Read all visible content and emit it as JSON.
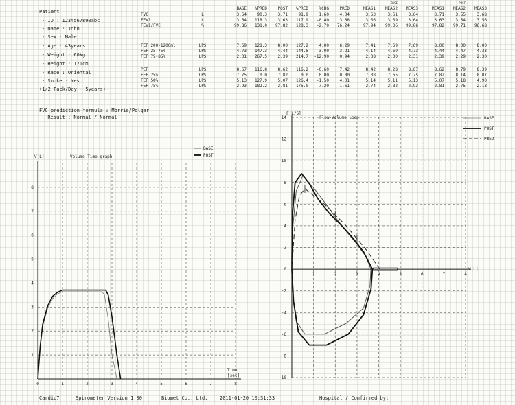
{
  "patient": {
    "heading": "Patient",
    "fields": [
      "- ID : 1234567890abc",
      "- Name : John",
      "- Sex : Male",
      "- Age : 43years",
      "- Weight : 60kg",
      "- Height : 171cm",
      "- Race : Oriental",
      "- Smoke : Yes",
      "(1/2 Pack/Day - 5years)"
    ]
  },
  "table": {
    "columns": [
      "BASE",
      "%PRED",
      "POST",
      "%PRED",
      "%CHG",
      "PRED",
      "MEAS1",
      "MEAS2",
      "MEAS3",
      "MEAS1",
      "MEAS2",
      "MEAS3"
    ],
    "tiny_labels": [
      "BASE",
      "POST"
    ],
    "rows": [
      {
        "name": "FVC",
        "unit": "L",
        "values": [
          "3.64",
          "90.3",
          "3.71",
          "91.9",
          "1.60",
          "4.04",
          "3.63",
          "3.61",
          "3.64",
          "3.71",
          "3.55",
          "3.68"
        ]
      },
      {
        "name": "FEV1",
        "unit": "L",
        "values": [
          "3.64",
          "118.3",
          "3.63",
          "117.9",
          "-0.40",
          "3.08",
          "3.56",
          "3.59",
          "3.64",
          "3.63",
          "3.54",
          "3.56"
        ]
      },
      {
        "name": "FEV1/FVC",
        "unit": "%",
        "values": [
          "99.86",
          "131.0",
          "97.82",
          "128.3",
          "-2.70",
          "76.24",
          "97.94",
          "99.36",
          "99.86",
          "97.82",
          "99.71",
          "96.68"
        ]
      },
      {
        "name": "FEF 200-1200ml",
        "unit": "LPS",
        "values": [
          "7.69",
          "121.3",
          "8.00",
          "127.2",
          "4.00",
          "6.29",
          "7.41",
          "7.69",
          "7.69",
          "8.00",
          "8.00",
          "8.00"
        ]
      },
      {
        "name": "FEF 25-75%",
        "unit": "LPS",
        "values": [
          "4.73",
          "147.3",
          "4.44",
          "144.5",
          "-3.00",
          "3.21",
          "4.14",
          "4.69",
          "4.73",
          "4.44",
          "4.47",
          "4.33"
        ]
      },
      {
        "name": "FEF 75-85%",
        "unit": "LPS",
        "values": [
          "2.31",
          "267.5",
          "2.39",
          "214.7",
          "-12.90",
          "0.94",
          "2.38",
          "2.30",
          "2.31",
          "2.39",
          "2.29",
          "2.30"
        ]
      },
      {
        "name": "PEF",
        "unit": "LPS",
        "values": [
          "8.67",
          "116.8",
          "8.62",
          "116.2",
          "-0.60",
          "7.42",
          "8.42",
          "8.28",
          "8.67",
          "8.62",
          "8.79",
          "8.39"
        ]
      },
      {
        "name": "FEF 25%",
        "unit": "LPS",
        "values": [
          "7.75",
          "0.0",
          "7.82",
          "0.0",
          "0.00",
          "0.00",
          "7.38",
          "7.65",
          "7.75",
          "7.82",
          "8.14",
          "8.07"
        ]
      },
      {
        "name": "FEF 50%",
        "unit": "LPS",
        "values": [
          "5.13",
          "127.9",
          "5.07",
          "126.4",
          "-1.50",
          "4.01",
          "5.14",
          "5.11",
          "5.13",
          "5.07",
          "5.18",
          "4.90"
        ]
      },
      {
        "name": "FEF 75%",
        "unit": "LPS",
        "values": [
          "2.93",
          "182.2",
          "2.81",
          "175.0",
          "-7.20",
          "1.61",
          "2.74",
          "2.82",
          "2.93",
          "2.81",
          "2.75",
          "2.18"
        ]
      }
    ]
  },
  "prediction": {
    "formula": "FVC prediction formula : Morris/Polgar",
    "result": "- Result : Normal / Normal"
  },
  "volume_time": {
    "ylabel": "V[L]",
    "title": "Volume-Time graph",
    "legend": [
      "BASE",
      "POST"
    ],
    "xlabel_1": "Time",
    "xlabel_2": "[sec]",
    "xticks": [
      "0",
      "1",
      "2",
      "3",
      "4",
      "5",
      "6",
      "7",
      "8"
    ],
    "yticks": [
      "1",
      "2",
      "3",
      "4",
      "5",
      "6",
      "7",
      "8"
    ]
  },
  "flow_volume": {
    "ylabel": "F[L/S]",
    "title": "Flow-Volume Loop",
    "legend": [
      "BASE",
      "POST",
      "PRED"
    ],
    "xlabel": "V[L]",
    "xticks": [
      "1",
      "2",
      "3",
      "4",
      "5",
      "6",
      "7",
      "8"
    ],
    "yticks": [
      "14",
      "12",
      "10",
      "8",
      "6",
      "4",
      "2",
      "0",
      "-2",
      "-4",
      "-6",
      "-8",
      "-10"
    ]
  },
  "chart_data": [
    {
      "type": "line",
      "title": "Volume-Time graph",
      "xlabel": "Time [sec]",
      "ylabel": "V[L]",
      "xlim": [
        0,
        8
      ],
      "ylim": [
        0,
        9
      ],
      "series": [
        {
          "name": "BASE",
          "x": [
            0,
            0.1,
            0.2,
            0.4,
            0.6,
            0.8,
            1.0,
            1.2,
            2.6,
            2.7,
            2.85,
            3.0,
            3.2
          ],
          "y": [
            0,
            1.3,
            2.2,
            2.95,
            3.35,
            3.55,
            3.64,
            3.64,
            3.64,
            3.5,
            2.5,
            1.0,
            0
          ]
        },
        {
          "name": "POST",
          "x": [
            0,
            0.1,
            0.2,
            0.4,
            0.6,
            0.8,
            1.0,
            1.1,
            2.75,
            2.85,
            3.0,
            3.2,
            3.35
          ],
          "y": [
            0,
            1.4,
            2.3,
            3.05,
            3.45,
            3.62,
            3.71,
            3.71,
            3.71,
            3.5,
            2.6,
            1.0,
            0
          ]
        }
      ]
    },
    {
      "type": "line",
      "title": "Flow-Volume Loop",
      "xlabel": "V[L]",
      "ylabel": "F[L/S]",
      "xlim": [
        0,
        8
      ],
      "ylim": [
        -10,
        14
      ],
      "series": [
        {
          "name": "BASE",
          "x": [
            0,
            0.05,
            0.2,
            0.5,
            1.0,
            1.5,
            2.0,
            2.5,
            3.0,
            3.4,
            3.64,
            3.6,
            3.3,
            2.5,
            1.5,
            0.6,
            0.2,
            0.05,
            0
          ],
          "y": [
            0,
            4,
            7.2,
            8.6,
            7.5,
            6.2,
            4.8,
            3.5,
            2.3,
            1.2,
            0,
            -1.5,
            -3.6,
            -5.0,
            -6.0,
            -6.0,
            -4.8,
            -2.5,
            0
          ]
        },
        {
          "name": "POST",
          "x": [
            0,
            0.03,
            0.15,
            0.45,
            0.8,
            1.2,
            1.7,
            2.3,
            2.8,
            3.3,
            3.71,
            3.65,
            3.3,
            2.6,
            1.6,
            0.8,
            0.3,
            0.08,
            0
          ],
          "y": [
            0,
            5,
            8.0,
            8.8,
            7.9,
            6.5,
            5.2,
            4.0,
            2.9,
            1.6,
            0,
            -1.8,
            -4.2,
            -6.0,
            -7.0,
            -7.0,
            -5.8,
            -3.0,
            0
          ]
        },
        {
          "name": "PRED",
          "x": [
            0,
            0.15,
            0.35,
            0.6,
            1.0,
            1.5,
            2.0,
            2.5,
            3.0,
            3.5,
            4.04
          ],
          "y": [
            0,
            4.5,
            6.8,
            7.42,
            6.8,
            6.0,
            5.0,
            4.0,
            2.8,
            1.6,
            0
          ]
        }
      ]
    }
  ],
  "footer": {
    "device": "Cardio7",
    "version": "Spirometer Version 1.00",
    "company": "Biomet Co., Ltd.",
    "datetime": "2011-01-20 10:31:33",
    "confirm": "Hospital / Confirmed by:"
  }
}
